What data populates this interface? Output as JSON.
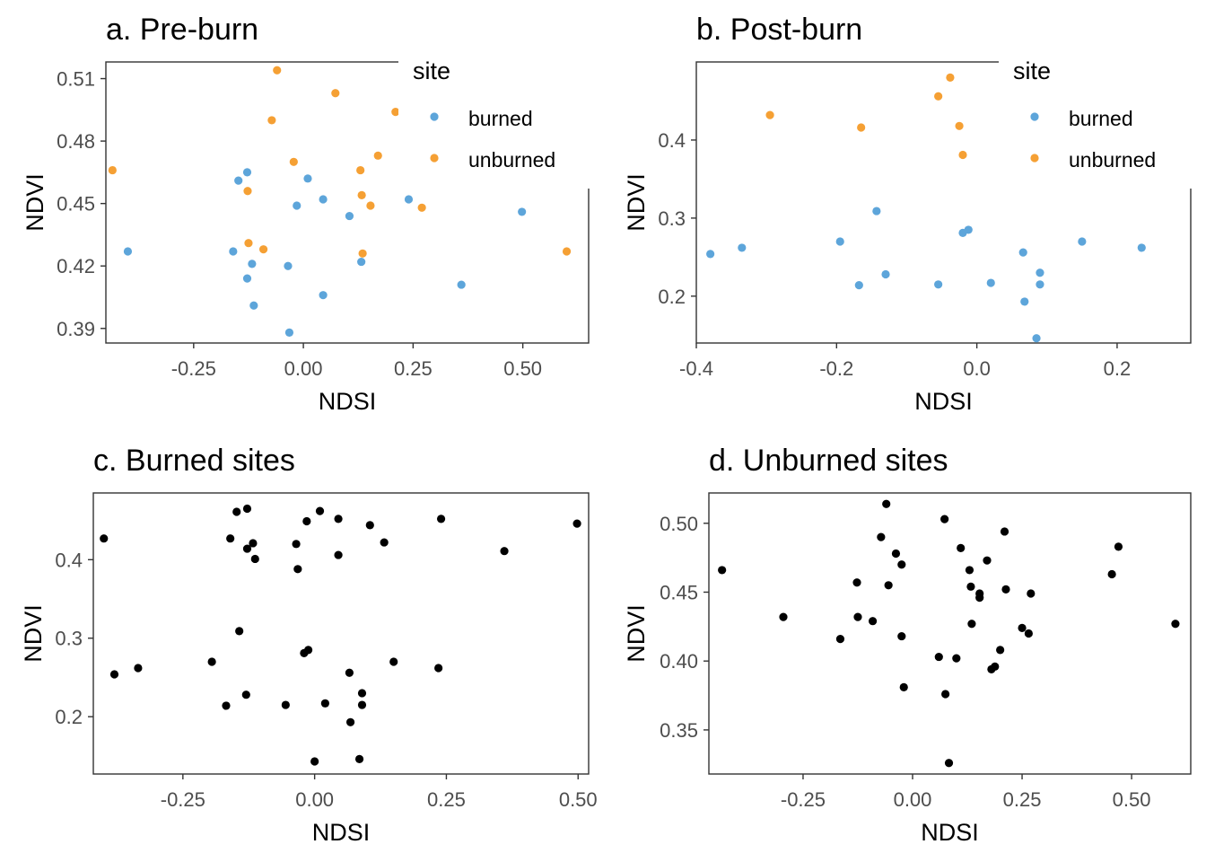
{
  "colors": {
    "burned": "#5DA5DA",
    "unburned": "#F5A034",
    "black": "#000000"
  },
  "chart_data": [
    {
      "type": "scatter",
      "title": "a. Pre-burn",
      "xlabel": "NDSI",
      "ylabel": "NDVI",
      "xlim": [
        -0.45,
        0.65
      ],
      "ylim": [
        0.383,
        0.518
      ],
      "x_ticks": [
        -0.25,
        0.0,
        0.25,
        0.5
      ],
      "x_tick_labels": [
        "-0.25",
        "0.00",
        "0.25",
        "0.50"
      ],
      "y_ticks": [
        0.39,
        0.42,
        0.45,
        0.48,
        0.51
      ],
      "y_tick_labels": [
        "0.39",
        "0.42",
        "0.45",
        "0.48",
        "0.51"
      ],
      "legend": {
        "title": "site",
        "placement": "top-right-inside",
        "entries": [
          "burned",
          "unburned"
        ]
      },
      "series": [
        {
          "name": "burned",
          "color": "#5DA5DA",
          "points": [
            [
              -0.4,
              0.427
            ],
            [
              -0.16,
              0.427
            ],
            [
              -0.148,
              0.461
            ],
            [
              -0.128,
              0.465
            ],
            [
              -0.128,
              0.414
            ],
            [
              -0.117,
              0.421
            ],
            [
              -0.113,
              0.401
            ],
            [
              -0.035,
              0.42
            ],
            [
              -0.032,
              0.388
            ],
            [
              -0.015,
              0.449
            ],
            [
              0.01,
              0.462
            ],
            [
              0.045,
              0.452
            ],
            [
              0.045,
              0.406
            ],
            [
              0.105,
              0.444
            ],
            [
              0.132,
              0.422
            ],
            [
              0.24,
              0.452
            ],
            [
              0.36,
              0.411
            ],
            [
              0.498,
              0.446
            ]
          ]
        },
        {
          "name": "unburned",
          "color": "#F5A034",
          "points": [
            [
              -0.435,
              0.466
            ],
            [
              -0.127,
              0.456
            ],
            [
              -0.125,
              0.431
            ],
            [
              -0.091,
              0.428
            ],
            [
              -0.072,
              0.49
            ],
            [
              -0.06,
              0.514
            ],
            [
              -0.022,
              0.47
            ],
            [
              0.073,
              0.503
            ],
            [
              0.13,
              0.466
            ],
            [
              0.133,
              0.454
            ],
            [
              0.135,
              0.426
            ],
            [
              0.153,
              0.449
            ],
            [
              0.17,
              0.473
            ],
            [
              0.21,
              0.494
            ],
            [
              0.27,
              0.448
            ],
            [
              0.29,
              0.473
            ],
            [
              0.6,
              0.427
            ]
          ]
        }
      ]
    },
    {
      "type": "scatter",
      "title": "b. Post-burn",
      "xlabel": "NDSI",
      "ylabel": "NDVI",
      "xlim": [
        -0.4,
        0.305
      ],
      "ylim": [
        0.14,
        0.5
      ],
      "x_ticks": [
        -0.4,
        -0.2,
        0.0,
        0.2
      ],
      "x_tick_labels": [
        "-0.4",
        "-0.2",
        "0.0",
        "0.2"
      ],
      "y_ticks": [
        0.2,
        0.3,
        0.4
      ],
      "y_tick_labels": [
        "0.2",
        "0.3",
        "0.4"
      ],
      "legend": {
        "title": "site",
        "placement": "top-right-inside",
        "entries": [
          "burned",
          "unburned"
        ]
      },
      "series": [
        {
          "name": "burned",
          "color": "#5DA5DA",
          "points": [
            [
              -0.38,
              0.254
            ],
            [
              -0.335,
              0.262
            ],
            [
              -0.195,
              0.27
            ],
            [
              -0.168,
              0.214
            ],
            [
              -0.143,
              0.309
            ],
            [
              -0.13,
              0.228
            ],
            [
              -0.055,
              0.215
            ],
            [
              -0.02,
              0.281
            ],
            [
              -0.012,
              0.285
            ],
            [
              0.02,
              0.217
            ],
            [
              0.066,
              0.256
            ],
            [
              0.068,
              0.193
            ],
            [
              0.085,
              0.146
            ],
            [
              0.09,
              0.23
            ],
            [
              0.09,
              0.215
            ],
            [
              0.15,
              0.27
            ],
            [
              0.235,
              0.262
            ]
          ]
        },
        {
          "name": "unburned",
          "color": "#F5A034",
          "points": [
            [
              -0.295,
              0.432
            ],
            [
              -0.165,
              0.416
            ],
            [
              -0.055,
              0.456
            ],
            [
              -0.038,
              0.48
            ],
            [
              -0.025,
              0.418
            ],
            [
              -0.02,
              0.381
            ]
          ]
        }
      ]
    },
    {
      "type": "scatter",
      "title": "c. Burned sites",
      "xlabel": "NDSI",
      "ylabel": "NDVI",
      "xlim": [
        -0.42,
        0.52
      ],
      "ylim": [
        0.127,
        0.485
      ],
      "x_ticks": [
        -0.25,
        0.0,
        0.25,
        0.5
      ],
      "x_tick_labels": [
        "-0.25",
        "0.00",
        "0.25",
        "0.50"
      ],
      "y_ticks": [
        0.2,
        0.3,
        0.4
      ],
      "y_tick_labels": [
        "0.2",
        "0.3",
        "0.4"
      ],
      "series": [
        {
          "name": "",
          "color": "#000000",
          "points": [
            [
              -0.4,
              0.427
            ],
            [
              -0.16,
              0.427
            ],
            [
              -0.148,
              0.461
            ],
            [
              -0.128,
              0.465
            ],
            [
              -0.128,
              0.414
            ],
            [
              -0.117,
              0.421
            ],
            [
              -0.113,
              0.401
            ],
            [
              -0.035,
              0.42
            ],
            [
              -0.032,
              0.388
            ],
            [
              -0.015,
              0.449
            ],
            [
              0.01,
              0.462
            ],
            [
              0.045,
              0.452
            ],
            [
              0.045,
              0.406
            ],
            [
              0.105,
              0.444
            ],
            [
              0.132,
              0.422
            ],
            [
              0.24,
              0.452
            ],
            [
              0.36,
              0.411
            ],
            [
              0.498,
              0.446
            ],
            [
              -0.38,
              0.254
            ],
            [
              -0.335,
              0.262
            ],
            [
              -0.195,
              0.27
            ],
            [
              -0.168,
              0.214
            ],
            [
              -0.143,
              0.309
            ],
            [
              -0.13,
              0.228
            ],
            [
              -0.055,
              0.215
            ],
            [
              -0.02,
              0.281
            ],
            [
              -0.012,
              0.285
            ],
            [
              0.02,
              0.217
            ],
            [
              0.066,
              0.256
            ],
            [
              0.068,
              0.193
            ],
            [
              0.085,
              0.146
            ],
            [
              0.09,
              0.23
            ],
            [
              0.09,
              0.215
            ],
            [
              0.15,
              0.27
            ],
            [
              0.235,
              0.262
            ],
            [
              0.0,
              0.143
            ]
          ]
        }
      ]
    },
    {
      "type": "scatter",
      "title": "d. Unburned sites",
      "xlabel": "NDSI",
      "ylabel": "NDVI",
      "xlim": [
        -0.465,
        0.635
      ],
      "ylim": [
        0.318,
        0.522
      ],
      "x_ticks": [
        -0.25,
        0.0,
        0.25,
        0.5
      ],
      "x_tick_labels": [
        "-0.25",
        "0.00",
        "0.25",
        "0.50"
      ],
      "y_ticks": [
        0.35,
        0.4,
        0.45,
        0.5
      ],
      "y_tick_labels": [
        "0.35",
        "0.40",
        "0.45",
        "0.50"
      ],
      "series": [
        {
          "name": "",
          "color": "#000000",
          "points": [
            [
              -0.435,
              0.466
            ],
            [
              -0.295,
              0.432
            ],
            [
              -0.165,
              0.416
            ],
            [
              -0.127,
              0.457
            ],
            [
              -0.125,
              0.432
            ],
            [
              -0.091,
              0.429
            ],
            [
              -0.072,
              0.49
            ],
            [
              -0.06,
              0.514
            ],
            [
              -0.055,
              0.455
            ],
            [
              -0.038,
              0.478
            ],
            [
              -0.025,
              0.47
            ],
            [
              -0.025,
              0.418
            ],
            [
              -0.02,
              0.381
            ],
            [
              0.06,
              0.403
            ],
            [
              0.073,
              0.503
            ],
            [
              0.075,
              0.376
            ],
            [
              0.083,
              0.326
            ],
            [
              0.1,
              0.402
            ],
            [
              0.11,
              0.482
            ],
            [
              0.13,
              0.466
            ],
            [
              0.133,
              0.454
            ],
            [
              0.135,
              0.427
            ],
            [
              0.153,
              0.449
            ],
            [
              0.153,
              0.446
            ],
            [
              0.17,
              0.473
            ],
            [
              0.18,
              0.394
            ],
            [
              0.188,
              0.396
            ],
            [
              0.2,
              0.408
            ],
            [
              0.21,
              0.494
            ],
            [
              0.213,
              0.452
            ],
            [
              0.25,
              0.424
            ],
            [
              0.265,
              0.42
            ],
            [
              0.27,
              0.449
            ],
            [
              0.455,
              0.463
            ],
            [
              0.47,
              0.483
            ],
            [
              0.6,
              0.427
            ]
          ]
        }
      ]
    }
  ]
}
